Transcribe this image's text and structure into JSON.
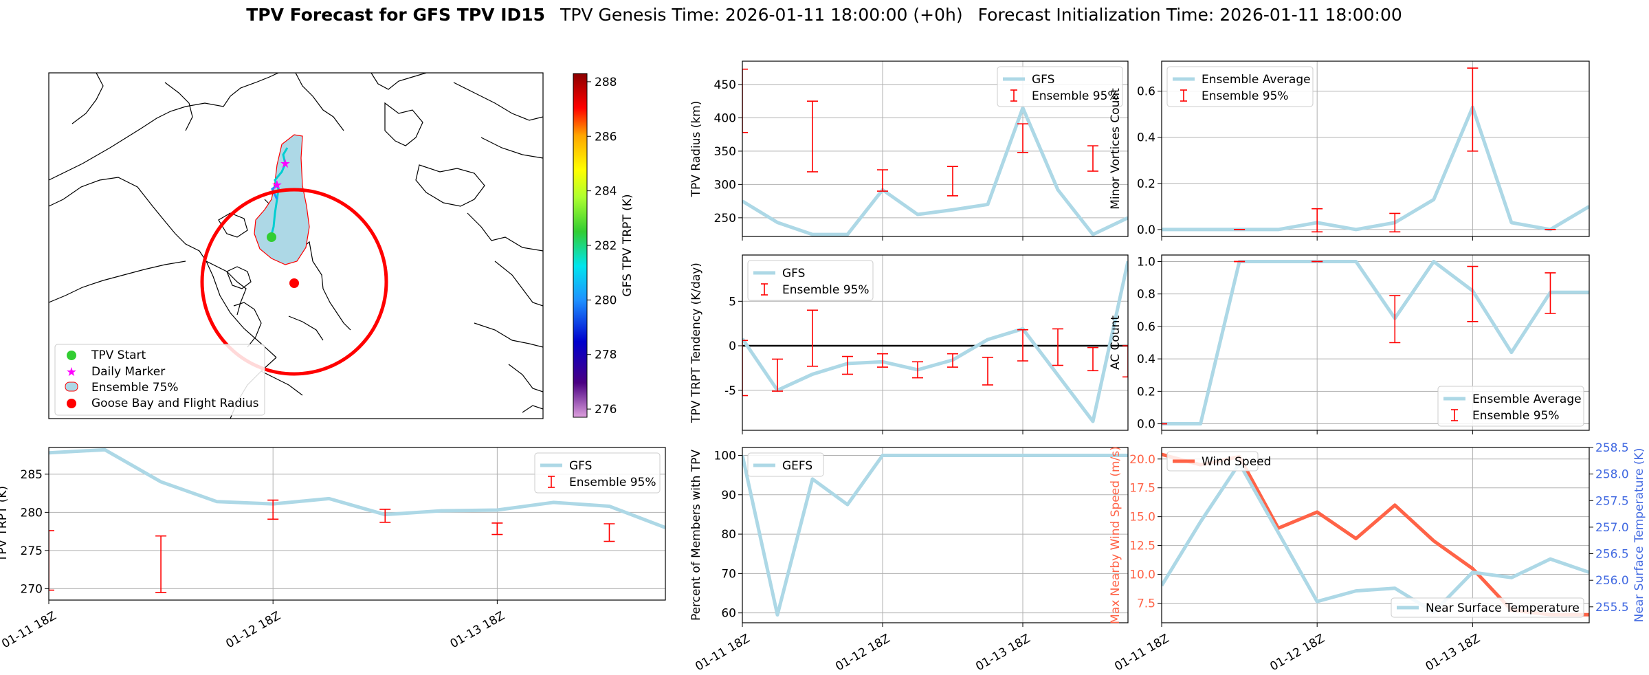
{
  "figure": {
    "title_bold": "TPV Forecast for GFS TPV ID15",
    "title_genesis": "TPV Genesis Time: 2026-01-11 18:00:00 (+0h)",
    "title_init": "Forecast Initialization Time: 2026-01-11 18:00:00"
  },
  "colors": {
    "gfs": "#add8e6",
    "errorbar": "#ff0000",
    "wind": "#ff6347",
    "temp_axis": "#4169e1",
    "zero_line": "#000000"
  },
  "map": {
    "colorbar_label": "GFS TPV TRPT (K)",
    "colorbar_ticks": [
      276,
      278,
      280,
      282,
      284,
      286,
      288
    ],
    "colorbar_range": [
      275.7,
      288.3
    ],
    "legend": [
      {
        "label": "TPV Start",
        "marker": "green-dot"
      },
      {
        "label": "Daily Marker",
        "marker": "magenta-star"
      },
      {
        "label": "Ensemble 75%",
        "marker": "lightblue-patch"
      },
      {
        "label": "Goose Bay and Flight Radius",
        "marker": "red-dot"
      }
    ]
  },
  "chart_data": [
    {
      "id": "trpt",
      "type": "line",
      "ylabel": "TPV TRPT (K)",
      "ylim": [
        268.5,
        288.5
      ],
      "yticks": [
        270,
        275,
        280,
        285
      ],
      "xticks": [
        0,
        4,
        8
      ],
      "xtick_labels": [
        "01-11 18Z",
        "01-12 18Z",
        "01-13 18Z"
      ],
      "xlim": [
        0,
        11
      ],
      "grid": true,
      "legend_position": "upper right",
      "series": [
        {
          "name": "GFS",
          "x": [
            0,
            1,
            2,
            3,
            4,
            5,
            6,
            7,
            8,
            9,
            10,
            11
          ],
          "values": [
            287.8,
            288.2,
            284.0,
            281.4,
            281.1,
            281.8,
            279.7,
            280.2,
            280.3,
            281.3,
            280.8,
            278.0
          ]
        },
        {
          "name": "Ensemble 95%",
          "errorbars": [
            [
              0,
              277.6,
              269.8
            ],
            [
              2,
              276.9,
              269.5
            ],
            [
              4,
              281.6,
              279.1
            ],
            [
              6,
              280.4,
              278.7
            ],
            [
              8,
              278.6,
              277.1
            ],
            [
              10,
              278.5,
              276.2
            ]
          ]
        }
      ]
    },
    {
      "id": "radius",
      "type": "line",
      "ylabel": "TPV Radius (km)",
      "ylim": [
        222,
        485
      ],
      "yticks": [
        250,
        300,
        350,
        400,
        450
      ],
      "xticks": [
        0,
        4,
        8
      ],
      "xlim": [
        0,
        11
      ],
      "grid": true,
      "legend_position": "upper right",
      "series": [
        {
          "name": "GFS",
          "x": [
            0,
            1,
            2,
            3,
            4,
            5,
            6,
            7,
            8,
            9,
            10,
            11
          ],
          "values": [
            275,
            243,
            225,
            225,
            292,
            255,
            262,
            270,
            415,
            292,
            225,
            250
          ]
        },
        {
          "name": "Ensemble 95%",
          "errorbars": [
            [
              0,
              473,
              378
            ],
            [
              2,
              425,
              319
            ],
            [
              4,
              322,
              290
            ],
            [
              6,
              327,
              283
            ],
            [
              8,
              391,
              348
            ],
            [
              10,
              358,
              320
            ]
          ]
        }
      ]
    },
    {
      "id": "tendency",
      "type": "line",
      "ylabel": "TPV TRPT Tendency (K/day)",
      "ylim": [
        -9.5,
        10.2
      ],
      "yticks": [
        -5,
        0,
        5
      ],
      "xticks": [
        0,
        4,
        8
      ],
      "xlim": [
        0,
        11
      ],
      "grid": true,
      "zero_line": true,
      "legend_position": "upper left",
      "series": [
        {
          "name": "GFS",
          "x": [
            0,
            1,
            2,
            3,
            4,
            5,
            6,
            7,
            8,
            9,
            10,
            11
          ],
          "values": [
            0.8,
            -5.0,
            -3.2,
            -2.0,
            -1.8,
            -2.7,
            -1.6,
            0.7,
            1.9,
            -3.3,
            -8.5,
            9.5
          ]
        },
        {
          "name": "Ensemble 95%",
          "errorbars": [
            [
              0,
              0.6,
              -5.6
            ],
            [
              1,
              -1.5,
              -5.1
            ],
            [
              2,
              4.0,
              -2.3
            ],
            [
              3,
              -1.2,
              -3.2
            ],
            [
              4,
              -0.9,
              -2.4
            ],
            [
              5,
              -1.8,
              -3.6
            ],
            [
              6,
              -0.9,
              -2.4
            ],
            [
              7,
              -1.3,
              -4.4
            ],
            [
              8,
              1.8,
              -1.7
            ],
            [
              9,
              1.9,
              -2.2
            ],
            [
              10,
              -0.2,
              -2.8
            ],
            [
              11,
              0.0,
              -3.5
            ]
          ]
        }
      ]
    },
    {
      "id": "percent",
      "type": "line",
      "ylabel": "Percent of Members with TPV",
      "ylim": [
        57.5,
        102
      ],
      "yticks": [
        60,
        70,
        80,
        90,
        100
      ],
      "xticks": [
        0,
        4,
        8
      ],
      "xtick_labels": [
        "01-11 18Z",
        "01-12 18Z",
        "01-13 18Z"
      ],
      "xlim": [
        0,
        11
      ],
      "grid": true,
      "legend_position": "upper left",
      "series": [
        {
          "name": "GEFS",
          "x": [
            0,
            1,
            2,
            3,
            4,
            5,
            6,
            7,
            8,
            9,
            10,
            11
          ],
          "values": [
            100,
            59.5,
            94,
            87.5,
            100,
            100,
            100,
            100,
            100,
            100,
            100,
            100
          ]
        }
      ]
    },
    {
      "id": "minor",
      "type": "line",
      "ylabel": "Minor Vortices Count",
      "ylim": [
        -0.03,
        0.73
      ],
      "yticks": [
        0.0,
        0.2,
        0.4,
        0.6
      ],
      "xticks": [
        0,
        4,
        8
      ],
      "xlim": [
        0,
        11
      ],
      "grid": true,
      "legend_position": "upper left",
      "series": [
        {
          "name": "Ensemble Average",
          "x": [
            0,
            1,
            2,
            3,
            4,
            5,
            6,
            7,
            8,
            9,
            10,
            11
          ],
          "values": [
            0.0,
            0.0,
            0.0,
            0.0,
            0.03,
            0.0,
            0.03,
            0.13,
            0.53,
            0.03,
            0.0,
            0.1
          ]
        },
        {
          "name": "Ensemble 95%",
          "errorbars": [
            [
              2,
              0.0,
              0.0
            ],
            [
              4,
              0.09,
              -0.01
            ],
            [
              6,
              0.07,
              -0.01
            ],
            [
              8,
              0.7,
              0.34
            ],
            [
              10,
              0.0,
              0.0
            ]
          ]
        }
      ]
    },
    {
      "id": "ac",
      "type": "line",
      "ylabel": "AC Count",
      "ylim": [
        -0.04,
        1.04
      ],
      "yticks": [
        0.0,
        0.2,
        0.4,
        0.6,
        0.8,
        1.0
      ],
      "xticks": [
        0,
        4,
        8
      ],
      "xlim": [
        0,
        11
      ],
      "grid": true,
      "legend_position": "lower right",
      "series": [
        {
          "name": "Ensemble Average",
          "x": [
            0,
            1,
            2,
            3,
            4,
            5,
            6,
            7,
            8,
            9,
            10,
            11
          ],
          "values": [
            0.0,
            0.0,
            1.0,
            1.0,
            1.0,
            1.0,
            0.65,
            1.0,
            0.82,
            0.44,
            0.81,
            0.81
          ]
        },
        {
          "name": "Ensemble 95%",
          "errorbars": [
            [
              0,
              0.0,
              0.0
            ],
            [
              2,
              1.0,
              1.0
            ],
            [
              4,
              1.0,
              1.0
            ],
            [
              6,
              0.79,
              0.5
            ],
            [
              8,
              0.97,
              0.63
            ],
            [
              10,
              0.93,
              0.68
            ]
          ]
        }
      ]
    },
    {
      "id": "wind",
      "type": "line",
      "ylabel": "Max Nearby Wind Speed (m/s)",
      "ylabel_right": "Near Surface Temperature (K)",
      "ylim": [
        5.8,
        21.0
      ],
      "yticks": [
        7.5,
        10.0,
        12.5,
        15.0,
        17.5,
        20.0
      ],
      "ylim_right": [
        255.2,
        258.5
      ],
      "yticks_right": [
        255.5,
        256.0,
        256.5,
        257.0,
        257.5,
        258.0,
        258.5
      ],
      "xticks": [
        0,
        4,
        8
      ],
      "xtick_labels": [
        "01-11 18Z",
        "01-12 18Z",
        "01-13 18Z"
      ],
      "xlim": [
        0,
        11
      ],
      "grid": true,
      "series": [
        {
          "name": "Wind Speed",
          "axis": "left",
          "x": [
            0,
            1,
            2,
            3,
            4,
            5,
            6,
            7,
            8,
            9,
            10,
            11
          ],
          "values": [
            20.4,
            19.5,
            20.2,
            14.0,
            15.4,
            13.1,
            16.0,
            12.9,
            10.5,
            6.9,
            6.5,
            6.5
          ]
        },
        {
          "name": "Near Surface Temperature",
          "axis": "right",
          "x": [
            0,
            1,
            2,
            3,
            4,
            5,
            6,
            7,
            8,
            9,
            10,
            11
          ],
          "values": [
            255.9,
            257.1,
            258.2,
            256.9,
            255.6,
            255.8,
            255.85,
            255.4,
            256.15,
            256.05,
            256.4,
            256.15
          ]
        }
      ]
    }
  ]
}
